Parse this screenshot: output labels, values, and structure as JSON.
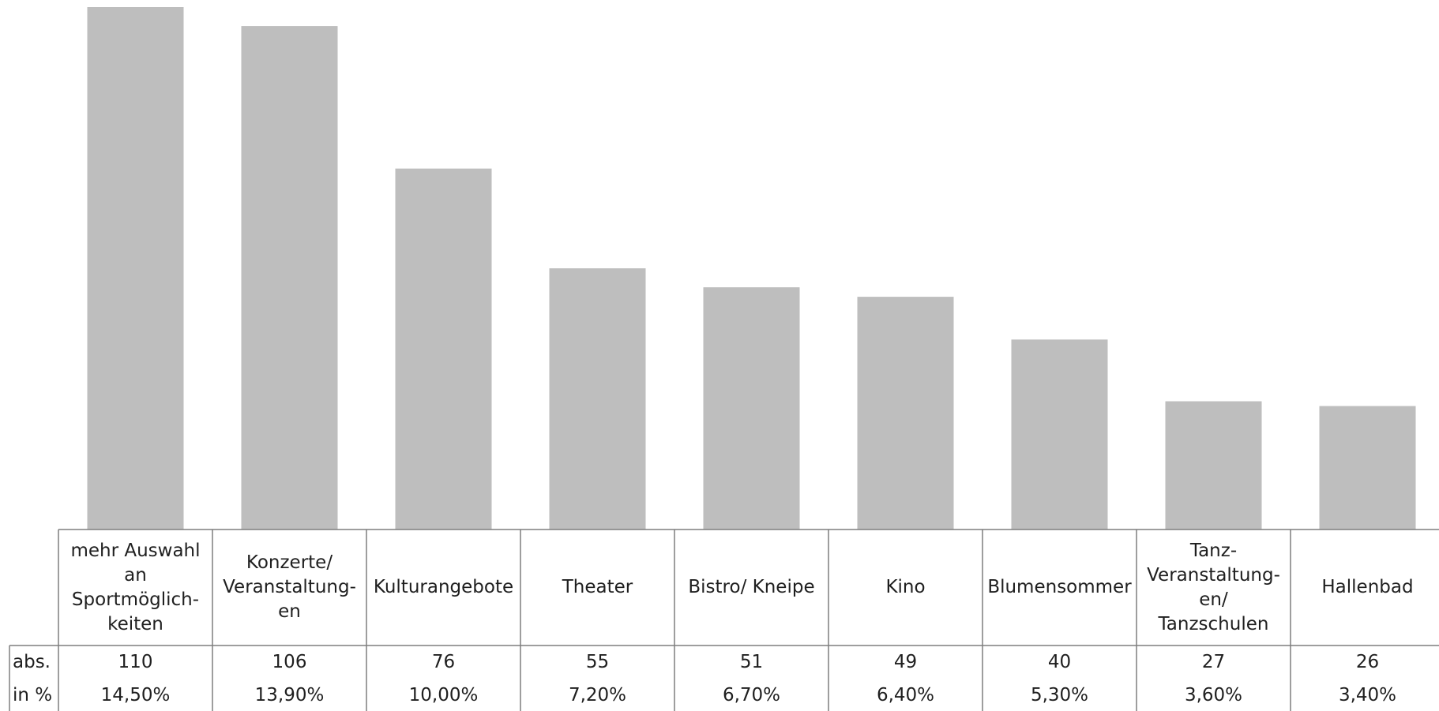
{
  "chart_data": {
    "type": "bar",
    "title": "",
    "xlabel": "",
    "ylabel": "",
    "ylim": [
      0,
      110
    ],
    "grid": false,
    "legend": "none",
    "bar_color": "#bebebe",
    "line_color": "#7f7f7f",
    "categories": [
      "mehr Auswahl\nan\nSportmöglich-\nkeiten",
      "Konzerte/\nVeranstaltung-\nen",
      "Kulturangebote",
      "Theater",
      "Bistro/ Kneipe",
      "Kino",
      "Blumensommer",
      "Tanz-\nVeranstaltung-\nen/\nTanzschulen",
      "Hallenbad"
    ],
    "values": [
      110,
      106,
      76,
      55,
      51,
      49,
      40,
      27,
      26
    ],
    "table": {
      "rows": [
        {
          "label": "abs.",
          "cells": [
            "110",
            "106",
            "76",
            "55",
            "51",
            "49",
            "40",
            "27",
            "26"
          ]
        },
        {
          "label": "in %",
          "cells": [
            "14,50%",
            "13,90%",
            "10,00%",
            "7,20%",
            "6,70%",
            "6,40%",
            "5,30%",
            "3,60%",
            "3,40%"
          ]
        }
      ]
    }
  }
}
